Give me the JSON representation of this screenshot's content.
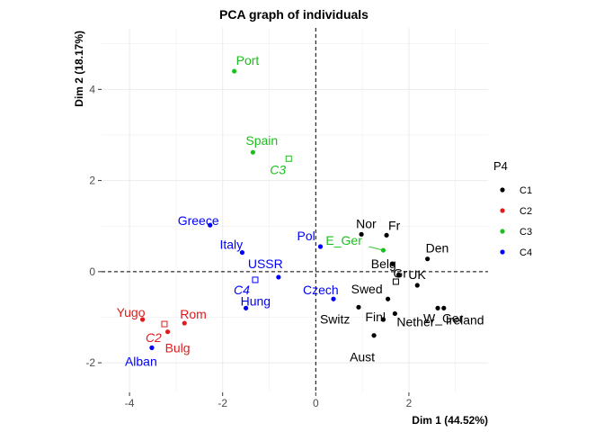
{
  "chart_data": {
    "type": "scatter",
    "title": "PCA graph of individuals",
    "xlabel": "Dim 1 (44.52%)",
    "ylabel": "Dim 2 (18.17%)",
    "xlim": [
      -4.6,
      3.7
    ],
    "ylim": [
      -2.65,
      5.35
    ],
    "x_ticks": [
      -4,
      -2,
      0,
      2
    ],
    "y_ticks": [
      -2,
      0,
      2,
      4
    ],
    "x_tick_labels": [
      "-4",
      "-2",
      "0",
      "2"
    ],
    "y_tick_labels": [
      "-2",
      "0",
      "2",
      "4"
    ],
    "grid": true,
    "reference_lines": [
      {
        "axis": "x",
        "value": 0,
        "style": "dashed"
      },
      {
        "axis": "y",
        "value": 0,
        "style": "dashed"
      }
    ],
    "legend": {
      "title": "P4",
      "position": "right",
      "entries": [
        "C1",
        "C2",
        "C3",
        "C4"
      ]
    },
    "colors": {
      "C1": "#000000",
      "C2": "#e31a1c",
      "C3": "#1cbf1c",
      "C4": "#0000ff"
    },
    "points": [
      {
        "label": "Port",
        "cluster": "C3",
        "x": -1.75,
        "y": 4.4
      },
      {
        "label": "Spain",
        "cluster": "C3",
        "x": -1.35,
        "y": 2.62
      },
      {
        "label": "E_Ger",
        "cluster": "C3",
        "x": 1.45,
        "y": 0.47
      },
      {
        "label": "Greece",
        "cluster": "C4",
        "x": -2.27,
        "y": 1.02
      },
      {
        "label": "Italy",
        "cluster": "C4",
        "x": -1.58,
        "y": 0.42
      },
      {
        "label": "USSR",
        "cluster": "C4",
        "x": -0.8,
        "y": -0.12
      },
      {
        "label": "Pol",
        "cluster": "C4",
        "x": 0.1,
        "y": 0.55
      },
      {
        "label": "Czech",
        "cluster": "C4",
        "x": 0.38,
        "y": -0.6
      },
      {
        "label": "Hung",
        "cluster": "C4",
        "x": -1.5,
        "y": -0.8
      },
      {
        "label": "Alban",
        "cluster": "C4",
        "x": -3.52,
        "y": -1.67
      },
      {
        "label": "Yugo",
        "cluster": "C2",
        "x": -3.72,
        "y": -1.05
      },
      {
        "label": "Rom",
        "cluster": "C2",
        "x": -2.82,
        "y": -1.13
      },
      {
        "label": "Bulg",
        "cluster": "C2",
        "x": -3.18,
        "y": -1.32
      },
      {
        "label": "Nor",
        "cluster": "C1",
        "x": 0.98,
        "y": 0.82
      },
      {
        "label": "Fr",
        "cluster": "C1",
        "x": 1.52,
        "y": 0.8
      },
      {
        "label": "Den",
        "cluster": "C1",
        "x": 2.4,
        "y": 0.28
      },
      {
        "label": "Belg",
        "cluster": "C1",
        "x": 1.65,
        "y": 0.17
      },
      {
        "label": "Gr",
        "cluster": "C1",
        "x": 1.78,
        "y": -0.07
      },
      {
        "label": "UK",
        "cluster": "C1",
        "x": 2.18,
        "y": -0.3
      },
      {
        "label": "Swed",
        "cluster": "C1",
        "x": 1.55,
        "y": -0.6
      },
      {
        "label": "W_Ger",
        "cluster": "C1",
        "x": 2.62,
        "y": -0.8
      },
      {
        "label": "Switz",
        "cluster": "C1",
        "x": 0.92,
        "y": -0.78
      },
      {
        "label": "Finl",
        "cluster": "C1",
        "x": 1.45,
        "y": -1.05
      },
      {
        "label": "Nether",
        "cluster": "C1",
        "x": 1.7,
        "y": -0.92
      },
      {
        "label": "Ireland",
        "cluster": "C1",
        "x": 2.75,
        "y": -0.8
      },
      {
        "label": "Aust",
        "cluster": "C1",
        "x": 1.25,
        "y": -1.4
      }
    ],
    "centroids": [
      {
        "label": "C1",
        "cluster": "C1",
        "x": 1.72,
        "y": -0.22
      },
      {
        "label": "C2",
        "cluster": "C2",
        "x": -3.25,
        "y": -1.15
      },
      {
        "label": "C3",
        "cluster": "C3",
        "x": -0.58,
        "y": 2.48
      },
      {
        "label": "C4",
        "cluster": "C4",
        "x": -1.3,
        "y": -0.18
      }
    ]
  }
}
